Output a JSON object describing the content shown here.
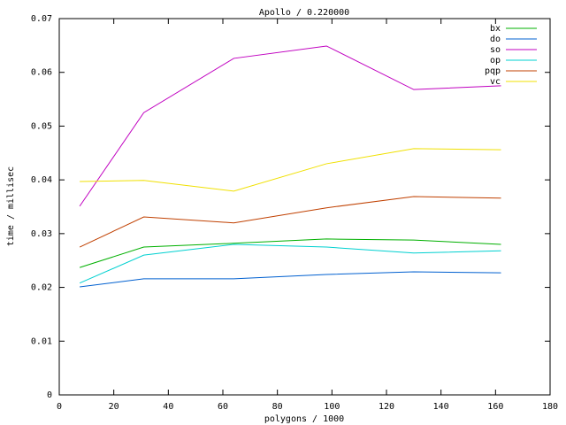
{
  "chart_data": {
    "type": "line",
    "title": "Apollo / 0.220000",
    "x_label": "polygons / 1000",
    "y_label": "time / millisec",
    "x": [
      7.5,
      31,
      64,
      98,
      130,
      162
    ],
    "series": [
      {
        "name": "bx",
        "color": "#00b000",
        "values": [
          0.0237,
          0.0275,
          0.0282,
          0.029,
          0.0288,
          0.028
        ]
      },
      {
        "name": "do",
        "color": "#0060d0",
        "values": [
          0.0201,
          0.0216,
          0.0216,
          0.0224,
          0.0229,
          0.0227
        ]
      },
      {
        "name": "so",
        "color": "#c000c0",
        "values": [
          0.0351,
          0.0525,
          0.0626,
          0.0649,
          0.0568,
          0.0575
        ]
      },
      {
        "name": "op",
        "color": "#00d0d0",
        "values": [
          0.0208,
          0.026,
          0.028,
          0.0275,
          0.0264,
          0.0268
        ]
      },
      {
        "name": "pqp",
        "color": "#c04000",
        "values": [
          0.0275,
          0.0331,
          0.032,
          0.0348,
          0.0369,
          0.0366
        ]
      },
      {
        "name": "vc",
        "color": "#f0e000",
        "values": [
          0.0397,
          0.0399,
          0.0379,
          0.043,
          0.0458,
          0.0456
        ]
      }
    ],
    "xlim": [
      0,
      180
    ],
    "xticks": [
      0,
      20,
      40,
      60,
      80,
      100,
      120,
      140,
      160,
      180
    ],
    "ylim": [
      0,
      0.07
    ],
    "yticks": [
      0,
      0.01,
      0.02,
      0.03,
      0.04,
      0.05,
      0.06,
      0.07
    ],
    "legend": "top-right"
  }
}
